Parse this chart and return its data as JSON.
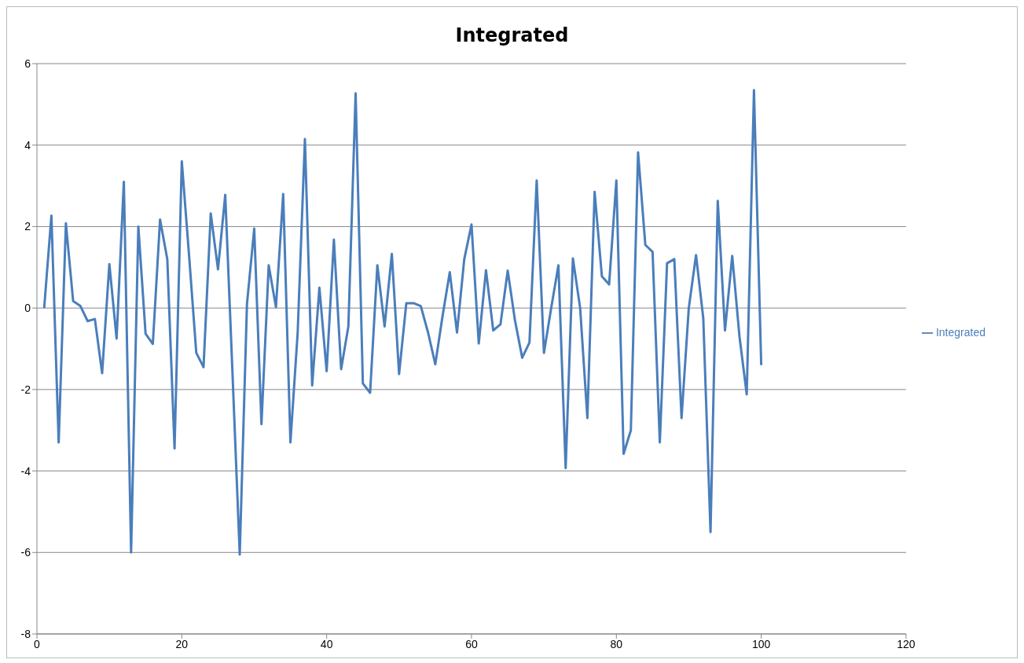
{
  "chart_data": {
    "type": "line",
    "title": "Integrated",
    "x": [
      1,
      2,
      3,
      4,
      5,
      6,
      7,
      8,
      9,
      10,
      11,
      12,
      13,
      14,
      15,
      16,
      17,
      18,
      19,
      20,
      21,
      22,
      23,
      24,
      25,
      26,
      27,
      28,
      29,
      30,
      31,
      32,
      33,
      34,
      35,
      36,
      37,
      38,
      39,
      40,
      41,
      42,
      43,
      44,
      45,
      46,
      47,
      48,
      49,
      50,
      51,
      52,
      53,
      54,
      55,
      56,
      57,
      58,
      59,
      60,
      61,
      62,
      63,
      64,
      65,
      66,
      67,
      68,
      69,
      70,
      71,
      72,
      73,
      74,
      75,
      76,
      77,
      78,
      79,
      80,
      81,
      82,
      83,
      84,
      85,
      86,
      87,
      88,
      89,
      90,
      91,
      92,
      93,
      94,
      95,
      96,
      97,
      98,
      99,
      100
    ],
    "series": [
      {
        "name": "Integrated",
        "color": "#4a7ebb",
        "values": [
          0,
          2.27,
          -3.3,
          2.08,
          0.17,
          0.05,
          -0.32,
          -0.27,
          -1.6,
          1.08,
          -0.75,
          3.1,
          -6.0,
          2.0,
          -0.63,
          -0.88,
          2.17,
          1.2,
          -3.45,
          3.6,
          1.3,
          -1.1,
          -1.45,
          2.32,
          0.95,
          2.78,
          -1.6,
          -6.05,
          0.1,
          1.95,
          -2.85,
          1.05,
          0.02,
          2.8,
          -3.3,
          -0.6,
          4.15,
          -1.9,
          0.5,
          -1.55,
          1.68,
          -1.5,
          -0.45,
          5.27,
          -1.85,
          -2.08,
          1.05,
          -0.45,
          1.33,
          -1.62,
          0.12,
          0.12,
          0.05,
          -0.6,
          -1.38,
          -0.2,
          0.88,
          -0.6,
          1.2,
          2.05,
          -0.87,
          0.93,
          -0.55,
          -0.4,
          0.92,
          -0.3,
          -1.22,
          -0.85,
          3.13,
          -1.1,
          0,
          1.05,
          -3.93,
          1.22,
          0,
          -2.7,
          2.85,
          0.78,
          0.58,
          3.13,
          -3.58,
          -3.0,
          3.82,
          1.55,
          1.38,
          -3.3,
          1.1,
          1.2,
          -2.7,
          0,
          1.3,
          -0.25,
          -5.5,
          2.63,
          -0.55,
          1.28,
          -0.7,
          -2.12,
          5.35,
          -1.4
        ]
      }
    ],
    "xlim": [
      0,
      120
    ],
    "xticks": [
      0,
      20,
      40,
      60,
      80,
      100,
      120
    ],
    "ylim": [
      -8,
      6
    ],
    "yticks": [
      -8,
      -6,
      -4,
      -2,
      0,
      2,
      4,
      6
    ],
    "grid": "y",
    "legend": "right",
    "marker": "none",
    "line_style": "solid"
  }
}
